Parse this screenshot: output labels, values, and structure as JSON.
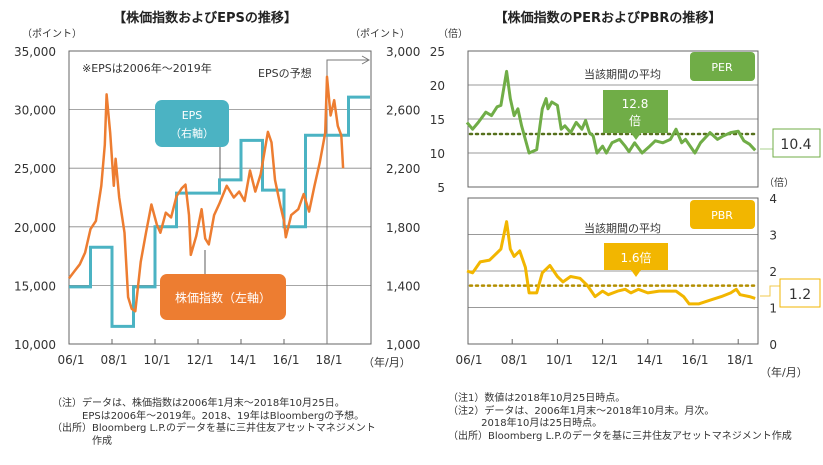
{
  "left_chart": {
    "title": "【株価指数およびEPSの推移】",
    "left_unit": "（ポイント）",
    "right_unit": "（ポイント）",
    "x_unit": "（年/月）",
    "note_eps_range": "※EPSは2006年～2019年",
    "forecast_label": "EPSの予想",
    "eps_callout_line1": "EPS",
    "eps_callout_line2": "（右軸）",
    "index_callout": "株価指数（左軸）"
  },
  "right_chart": {
    "title": "【株価指数のPERおよびPBRの推移】",
    "per_unit": "（倍）",
    "pbr_unit": "（倍）",
    "x_unit": "（年/月）",
    "per_avg_label": "当該期間の平均",
    "per_badge": "PER",
    "per_avg_value_line1": "12.8",
    "per_avg_value_line2": "倍",
    "per_latest": "10.4",
    "pbr_avg_label": "当該期間の平均",
    "pbr_badge": "PBR",
    "pbr_avg_value": "1.6倍",
    "pbr_latest": "1.2"
  },
  "notes_left": [
    "（注）データは、株価指数は2006年1月末～2018年10月25日。",
    "　　　EPSは2006年～2019年。2018、19年はBloombergの予想。",
    "（出所）Bloomberg L.P.のデータを基に三井住友アセットマネジメント",
    "　　　　作成"
  ],
  "notes_right": [
    "（注1）数値は2018年10月25日時点。",
    "（注2）データは、2006年1月末～2018年10月末。月次。",
    "　　　 2018年10月は25日時点。",
    "（出所）Bloomberg L.P.のデータを基に三井住友アセットマネジメント作成"
  ],
  "colors": {
    "index": "#ed7d31",
    "eps": "#4bb3c3",
    "per": "#70ad47",
    "per_avg": "#56701c",
    "pbr": "#f2b600",
    "pbr_avg": "#b38f00"
  },
  "chart_data": [
    {
      "type": "line",
      "title": "【株価指数およびEPSの推移】",
      "xlabel": "（年/月）",
      "ylabel": "（ポイント）",
      "y2label": "（ポイント）",
      "x_ticks": [
        "06/1",
        "08/1",
        "10/1",
        "12/1",
        "14/1",
        "16/1",
        "18/1"
      ],
      "ylim": [
        10000,
        35000
      ],
      "y_ticks": [
        "10,000",
        "15,000",
        "20,000",
        "25,000",
        "30,000",
        "35,000"
      ],
      "y2lim": [
        1000,
        3000
      ],
      "y2_ticks": [
        "1,000",
        "1,400",
        "1,800",
        "2,200",
        "2,600",
        "3,000"
      ],
      "grid": true,
      "series": [
        {
          "name": "株価指数（左軸）",
          "axis": "left",
          "points": [
            [
              "2006-01",
              15600
            ],
            [
              "2006-04",
              16200
            ],
            [
              "2006-07",
              16800
            ],
            [
              "2006-10",
              17800
            ],
            [
              "2007-01",
              19800
            ],
            [
              "2007-04",
              20500
            ],
            [
              "2007-07",
              23500
            ],
            [
              "2007-09",
              27000
            ],
            [
              "2007-10",
              31300
            ],
            [
              "2007-12",
              28000
            ],
            [
              "2008-02",
              23500
            ],
            [
              "2008-03",
              25800
            ],
            [
              "2008-05",
              22500
            ],
            [
              "2008-08",
              19500
            ],
            [
              "2008-10",
              14000
            ],
            [
              "2008-12",
              13000
            ],
            [
              "2009-02",
              12800
            ],
            [
              "2009-05",
              17000
            ],
            [
              "2009-08",
              19500
            ],
            [
              "2009-11",
              21900
            ],
            [
              "2010-02",
              20200
            ],
            [
              "2010-04",
              19500
            ],
            [
              "2010-07",
              21200
            ],
            [
              "2010-10",
              20800
            ],
            [
              "2011-01",
              22600
            ],
            [
              "2011-04",
              23300
            ],
            [
              "2011-06",
              23600
            ],
            [
              "2011-08",
              21000
            ],
            [
              "2011-09",
              17600
            ],
            [
              "2011-12",
              19200
            ],
            [
              "2012-03",
              21500
            ],
            [
              "2012-05",
              19000
            ],
            [
              "2012-07",
              18500
            ],
            [
              "2012-10",
              21000
            ],
            [
              "2013-01",
              22000
            ],
            [
              "2013-05",
              23500
            ],
            [
              "2013-09",
              22500
            ],
            [
              "2013-12",
              23000
            ],
            [
              "2014-03",
              22200
            ],
            [
              "2014-06",
              24800
            ],
            [
              "2014-09",
              23000
            ],
            [
              "2014-12",
              24500
            ],
            [
              "2015-04",
              28100
            ],
            [
              "2015-06",
              27200
            ],
            [
              "2015-08",
              24000
            ],
            [
              "2015-11",
              21800
            ],
            [
              "2016-01",
              20500
            ],
            [
              "2016-02",
              19100
            ],
            [
              "2016-05",
              21000
            ],
            [
              "2016-09",
              21500
            ],
            [
              "2016-12",
              22800
            ],
            [
              "2017-03",
              21300
            ],
            [
              "2017-06",
              23500
            ],
            [
              "2017-09",
              25500
            ],
            [
              "2017-12",
              28000
            ],
            [
              "2018-01",
              32800
            ],
            [
              "2018-03",
              29500
            ],
            [
              "2018-05",
              30800
            ],
            [
              "2018-07",
              28600
            ],
            [
              "2018-09",
              27800
            ],
            [
              "2018-10",
              25000
            ]
          ]
        },
        {
          "name": "EPS（右軸）",
          "axis": "right",
          "style": "step",
          "years": [
            2006,
            2007,
            2008,
            2009,
            2010,
            2011,
            2012,
            2013,
            2014,
            2015,
            2016,
            2017,
            2018,
            2019
          ],
          "values": [
            1390,
            1660,
            1120,
            1390,
            1800,
            2030,
            2030,
            2120,
            2390,
            2050,
            1800,
            2425,
            2425,
            2685
          ]
        }
      ]
    },
    {
      "type": "line",
      "title": "PER",
      "ylabel": "（倍）",
      "ylim": [
        5,
        25
      ],
      "y_ticks": [
        "5",
        "10",
        "15",
        "20",
        "25"
      ],
      "grid": true,
      "average": 12.8,
      "latest": 10.4,
      "series": [
        {
          "name": "PER",
          "points": [
            [
              "2006-01",
              14.5
            ],
            [
              "2006-04",
              13.5
            ],
            [
              "2006-07",
              14.5
            ],
            [
              "2006-11",
              16
            ],
            [
              "2007-02",
              15.5
            ],
            [
              "2007-05",
              16.8
            ],
            [
              "2007-07",
              17
            ],
            [
              "2007-10",
              22
            ],
            [
              "2007-12",
              18
            ],
            [
              "2008-02",
              15.5
            ],
            [
              "2008-04",
              16.5
            ],
            [
              "2008-06",
              14
            ],
            [
              "2008-10",
              10
            ],
            [
              "2009-02",
              10.5
            ],
            [
              "2009-05",
              16.5
            ],
            [
              "2009-07",
              18
            ],
            [
              "2009-08",
              16.5
            ],
            [
              "2009-10",
              17.5
            ],
            [
              "2010-01",
              17
            ],
            [
              "2010-03",
              13.5
            ],
            [
              "2010-05",
              14
            ],
            [
              "2010-08",
              13
            ],
            [
              "2010-11",
              14.5
            ],
            [
              "2011-02",
              13.5
            ],
            [
              "2011-04",
              14.8
            ],
            [
              "2011-06",
              13
            ],
            [
              "2011-08",
              12.5
            ],
            [
              "2011-10",
              10
            ],
            [
              "2012-01",
              11
            ],
            [
              "2012-03",
              10
            ],
            [
              "2012-06",
              11.5
            ],
            [
              "2012-10",
              12
            ],
            [
              "2013-01",
              11
            ],
            [
              "2013-03",
              10.2
            ],
            [
              "2013-06",
              11.5
            ],
            [
              "2013-10",
              10
            ],
            [
              "2014-02",
              11
            ],
            [
              "2014-05",
              11.8
            ],
            [
              "2014-09",
              11.5
            ],
            [
              "2015-01",
              12
            ],
            [
              "2015-04",
              13.5
            ],
            [
              "2015-07",
              11.5
            ],
            [
              "2015-09",
              12
            ],
            [
              "2016-02",
              10
            ],
            [
              "2016-05",
              11.5
            ],
            [
              "2016-10",
              13
            ],
            [
              "2017-02",
              12
            ],
            [
              "2017-05",
              12.5
            ],
            [
              "2017-09",
              13
            ],
            [
              "2018-01",
              13.2
            ],
            [
              "2018-04",
              11.8
            ],
            [
              "2018-07",
              11.3
            ],
            [
              "2018-10",
              10.4
            ]
          ]
        }
      ]
    },
    {
      "type": "line",
      "title": "PBR",
      "xlabel": "（年/月）",
      "ylabel": "（倍）",
      "ylim": [
        0,
        4
      ],
      "y_ticks": [
        "0",
        "1",
        "2",
        "3",
        "4"
      ],
      "x_ticks": [
        "06/1",
        "08/1",
        "10/1",
        "12/1",
        "14/1",
        "16/1",
        "18/1"
      ],
      "grid": true,
      "average": 1.6,
      "latest": 1.2,
      "series": [
        {
          "name": "PBR",
          "points": [
            [
              "2006-01",
              2.0
            ],
            [
              "2006-04",
              1.95
            ],
            [
              "2006-08",
              2.25
            ],
            [
              "2007-01",
              2.3
            ],
            [
              "2007-04",
              2.45
            ],
            [
              "2007-07",
              2.6
            ],
            [
              "2007-10",
              3.35
            ],
            [
              "2007-12",
              2.6
            ],
            [
              "2008-02",
              2.4
            ],
            [
              "2008-05",
              2.55
            ],
            [
              "2008-08",
              2.1
            ],
            [
              "2008-10",
              1.4
            ],
            [
              "2009-02",
              1.4
            ],
            [
              "2009-05",
              1.95
            ],
            [
              "2009-09",
              2.15
            ],
            [
              "2010-01",
              1.85
            ],
            [
              "2010-04",
              1.7
            ],
            [
              "2010-08",
              1.85
            ],
            [
              "2011-01",
              1.8
            ],
            [
              "2011-05",
              1.6
            ],
            [
              "2011-09",
              1.3
            ],
            [
              "2012-01",
              1.45
            ],
            [
              "2012-04",
              1.35
            ],
            [
              "2012-09",
              1.45
            ],
            [
              "2013-01",
              1.5
            ],
            [
              "2013-04",
              1.4
            ],
            [
              "2013-08",
              1.5
            ],
            [
              "2014-01",
              1.4
            ],
            [
              "2014-07",
              1.45
            ],
            [
              "2015-01",
              1.45
            ],
            [
              "2015-04",
              1.45
            ],
            [
              "2015-08",
              1.3
            ],
            [
              "2015-11",
              1.1
            ],
            [
              "2016-04",
              1.1
            ],
            [
              "2016-10",
              1.2
            ],
            [
              "2017-04",
              1.3
            ],
            [
              "2017-09",
              1.4
            ],
            [
              "2017-12",
              1.5
            ],
            [
              "2018-02",
              1.35
            ],
            [
              "2018-07",
              1.3
            ],
            [
              "2018-10",
              1.25
            ]
          ]
        }
      ]
    }
  ]
}
